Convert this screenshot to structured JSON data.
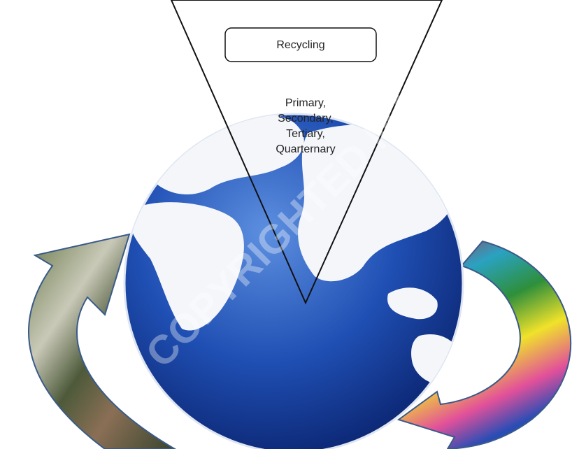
{
  "box": {
    "label": "Recycling"
  },
  "triangle": {
    "lines": [
      "Primary,",
      "Secondary,",
      "Tertiary,",
      "Quarternary"
    ]
  },
  "watermark": "COPYRIGHTED MA"
}
